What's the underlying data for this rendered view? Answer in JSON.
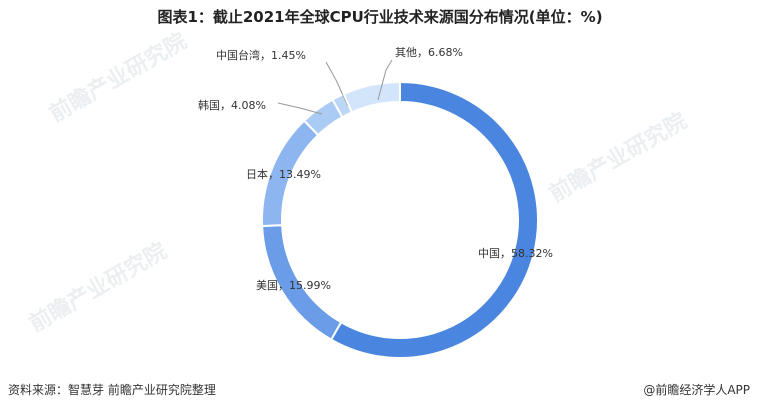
{
  "title": "图表1：截止2021年全球CPU行业技术来源国分布情况(单位：%)",
  "footer": {
    "source": "资料来源：智慧芽 前瞻产业研究院整理",
    "brand": "@前瞻经济学人APP"
  },
  "watermark": "前瞻产业研究院",
  "chart_data": {
    "type": "pie",
    "donut": true,
    "title": "图表1：截止2021年全球CPU行业技术来源国分布情况(单位：%)",
    "slices": [
      {
        "name": "中国",
        "value": 58.32,
        "label": "中国，58.32%",
        "color": "#4a86e0"
      },
      {
        "name": "美国",
        "value": 15.99,
        "label": "美国，15.99%",
        "color": "#6a9ce8"
      },
      {
        "name": "日本",
        "value": 13.49,
        "label": "日本，13.49%",
        "color": "#8db5ef"
      },
      {
        "name": "韩国",
        "value": 4.08,
        "label": "韩国，4.08%",
        "color": "#aaccf4"
      },
      {
        "name": "中国台湾",
        "value": 1.45,
        "label": "中国台湾，1.45%",
        "color": "#bcd6f6"
      },
      {
        "name": "其他",
        "value": 6.68,
        "label": "其他，6.68%",
        "color": "#d3e5fa"
      }
    ]
  }
}
